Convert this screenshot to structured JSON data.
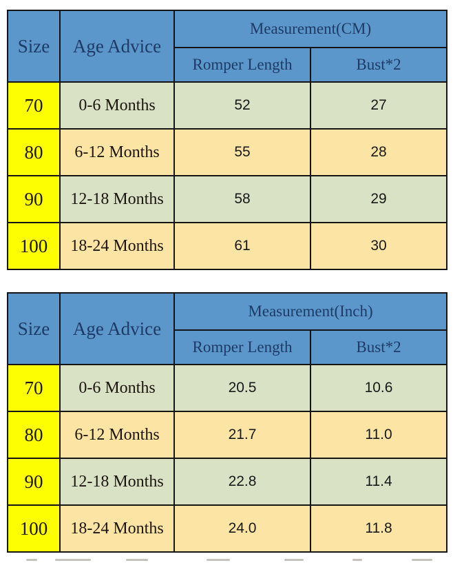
{
  "colors": {
    "page_bg": "#ffffff",
    "header_blue": "#5b97cb",
    "header_text": "#1e3a66",
    "size_yellow": "#fdfe02",
    "row_green": "#d9e2c5",
    "row_tan": "#fce5a4",
    "grid_line": "#141414",
    "cell_text": "#1c150e",
    "value_text": "#181818"
  },
  "tables": [
    {
      "headers": {
        "size": "Size",
        "age": "Age Advice",
        "measurement": "Measurement(CM)",
        "romper_length": "Romper Length",
        "bust": "Bust*2"
      },
      "rows": [
        {
          "size": "70",
          "age": "0-6 Months",
          "length": "52",
          "bust": "27"
        },
        {
          "size": "80",
          "age": "6-12 Months",
          "length": "55",
          "bust": "28"
        },
        {
          "size": "90",
          "age": "12-18 Months",
          "length": "58",
          "bust": "29"
        },
        {
          "size": "100",
          "age": "18-24 Months",
          "length": "61",
          "bust": "30"
        }
      ]
    },
    {
      "headers": {
        "size": "Size",
        "age": "Age Advice",
        "measurement": "Measurement(Inch)",
        "romper_length": "Romper Length",
        "bust": "Bust*2"
      },
      "rows": [
        {
          "size": "70",
          "age": "0-6 Months",
          "length": "20.5",
          "bust": "10.6"
        },
        {
          "size": "80",
          "age": "6-12 Months",
          "length": "21.7",
          "bust": "11.0"
        },
        {
          "size": "90",
          "age": "12-18 Months",
          "length": "22.8",
          "bust": "11.4"
        },
        {
          "size": "100",
          "age": "18-24 Months",
          "length": "24.0",
          "bust": "11.8"
        }
      ]
    }
  ]
}
